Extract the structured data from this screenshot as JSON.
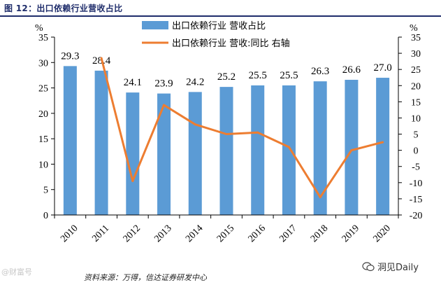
{
  "figure": {
    "title": "图 12：出口依赖行业营收占比",
    "source": "资料来源：万得，信达证券研发中心",
    "watermark_left": "@财富号",
    "watermark_right": "洞见Daily"
  },
  "chart_data": {
    "type": "bar+line",
    "categories": [
      "2010",
      "2011",
      "2012",
      "2013",
      "2014",
      "2015",
      "2016",
      "2017",
      "2018",
      "2019",
      "2020"
    ],
    "series": [
      {
        "name": "出口依赖行业 营收占比",
        "type": "bar",
        "axis": "left",
        "color": "#5b9bd5",
        "values": [
          29.3,
          28.4,
          24.1,
          23.9,
          24.2,
          25.2,
          25.5,
          25.5,
          26.3,
          26.6,
          27.0
        ],
        "labels": [
          "29.3",
          "28.4",
          "24.1",
          "23.9",
          "24.2",
          "25.2",
          "25.5",
          "25.5",
          "26.3",
          "26.6",
          "27.0"
        ]
      },
      {
        "name": "出口依赖行业 营收:同比 右轴",
        "type": "line",
        "axis": "right",
        "color": "#ed7d31",
        "values": [
          null,
          28.5,
          -9.5,
          14,
          8,
          5,
          5.5,
          1,
          -14.5,
          0,
          2.5
        ]
      }
    ],
    "left_axis": {
      "unit": "%",
      "min": 0,
      "max": 35,
      "ticks": [
        "0",
        "5",
        "10",
        "15",
        "20",
        "25",
        "30",
        "35"
      ]
    },
    "right_axis": {
      "unit": "%",
      "min": -20,
      "max": 35,
      "ticks": [
        "-20",
        "-15",
        "-10",
        "-5",
        "0",
        "5",
        "10",
        "15",
        "20",
        "25",
        "30",
        "35"
      ]
    },
    "legend_position": "top"
  }
}
